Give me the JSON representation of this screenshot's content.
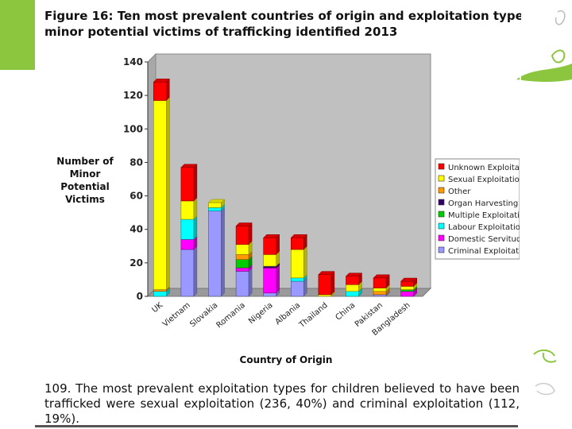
{
  "figure": {
    "number_label": "Figure 16",
    "title_line1": ": Ten most prevalent countries of origin and exploitation type",
    "title_line2": "minor potential victims of trafficking identified 2013"
  },
  "paragraph": {
    "text": "109. The most prevalent exploitation types for children believed to have been trafficked were sexual exploitation (236, 40%) and criminal exploitation (112, 19%)."
  },
  "colors": {
    "green": "#8cc63f",
    "plot_bg": "#c0c0c0"
  },
  "chart_data": {
    "type": "bar",
    "stacked": true,
    "style": "3d",
    "title": "",
    "ylabel": "Number of Minor Potential Victims",
    "xlabel": "Country of Origin",
    "ylim": [
      0,
      140
    ],
    "yticks": [
      0,
      20,
      40,
      60,
      80,
      100,
      120,
      140
    ],
    "legend_position": "right",
    "categories": [
      "UK",
      "Vietnam",
      "Slovakia",
      "Romania",
      "Nigeria",
      "Albania",
      "Thailand",
      "China",
      "Pakistan",
      "Bangladesh"
    ],
    "series": [
      {
        "name": "Criminal Exploitation",
        "color": "#9999ff",
        "values": [
          0,
          28,
          51,
          15,
          2,
          9,
          0,
          0,
          1,
          0
        ]
      },
      {
        "name": "Domestic Servitude",
        "color": "#ff00ff",
        "values": [
          0,
          6,
          0,
          2,
          15,
          0,
          0,
          0,
          0,
          3
        ]
      },
      {
        "name": "Labour Exploitation",
        "color": "#00ffff",
        "values": [
          3,
          12,
          2,
          0,
          0,
          2,
          0,
          3,
          0,
          0
        ]
      },
      {
        "name": "Multiple Exploitation",
        "color": "#00cc00",
        "values": [
          0,
          0,
          0,
          5,
          0,
          0,
          0,
          0,
          0,
          1
        ]
      },
      {
        "name": "Organ Harvesting",
        "color": "#330066",
        "values": [
          0,
          0,
          0,
          0,
          1,
          0,
          0,
          0,
          0,
          0
        ]
      },
      {
        "name": "Other",
        "color": "#ff9900",
        "values": [
          1,
          0,
          0,
          3,
          0,
          0,
          0,
          0,
          2,
          0
        ]
      },
      {
        "name": "Sexual Exploitation",
        "color": "#ffff00",
        "values": [
          113,
          11,
          3,
          6,
          7,
          17,
          1,
          4,
          2,
          2
        ]
      },
      {
        "name": "Unknown Exploitation",
        "color": "#ff0000",
        "values": [
          11,
          20,
          0,
          11,
          10,
          7,
          12,
          5,
          6,
          3
        ]
      }
    ]
  }
}
